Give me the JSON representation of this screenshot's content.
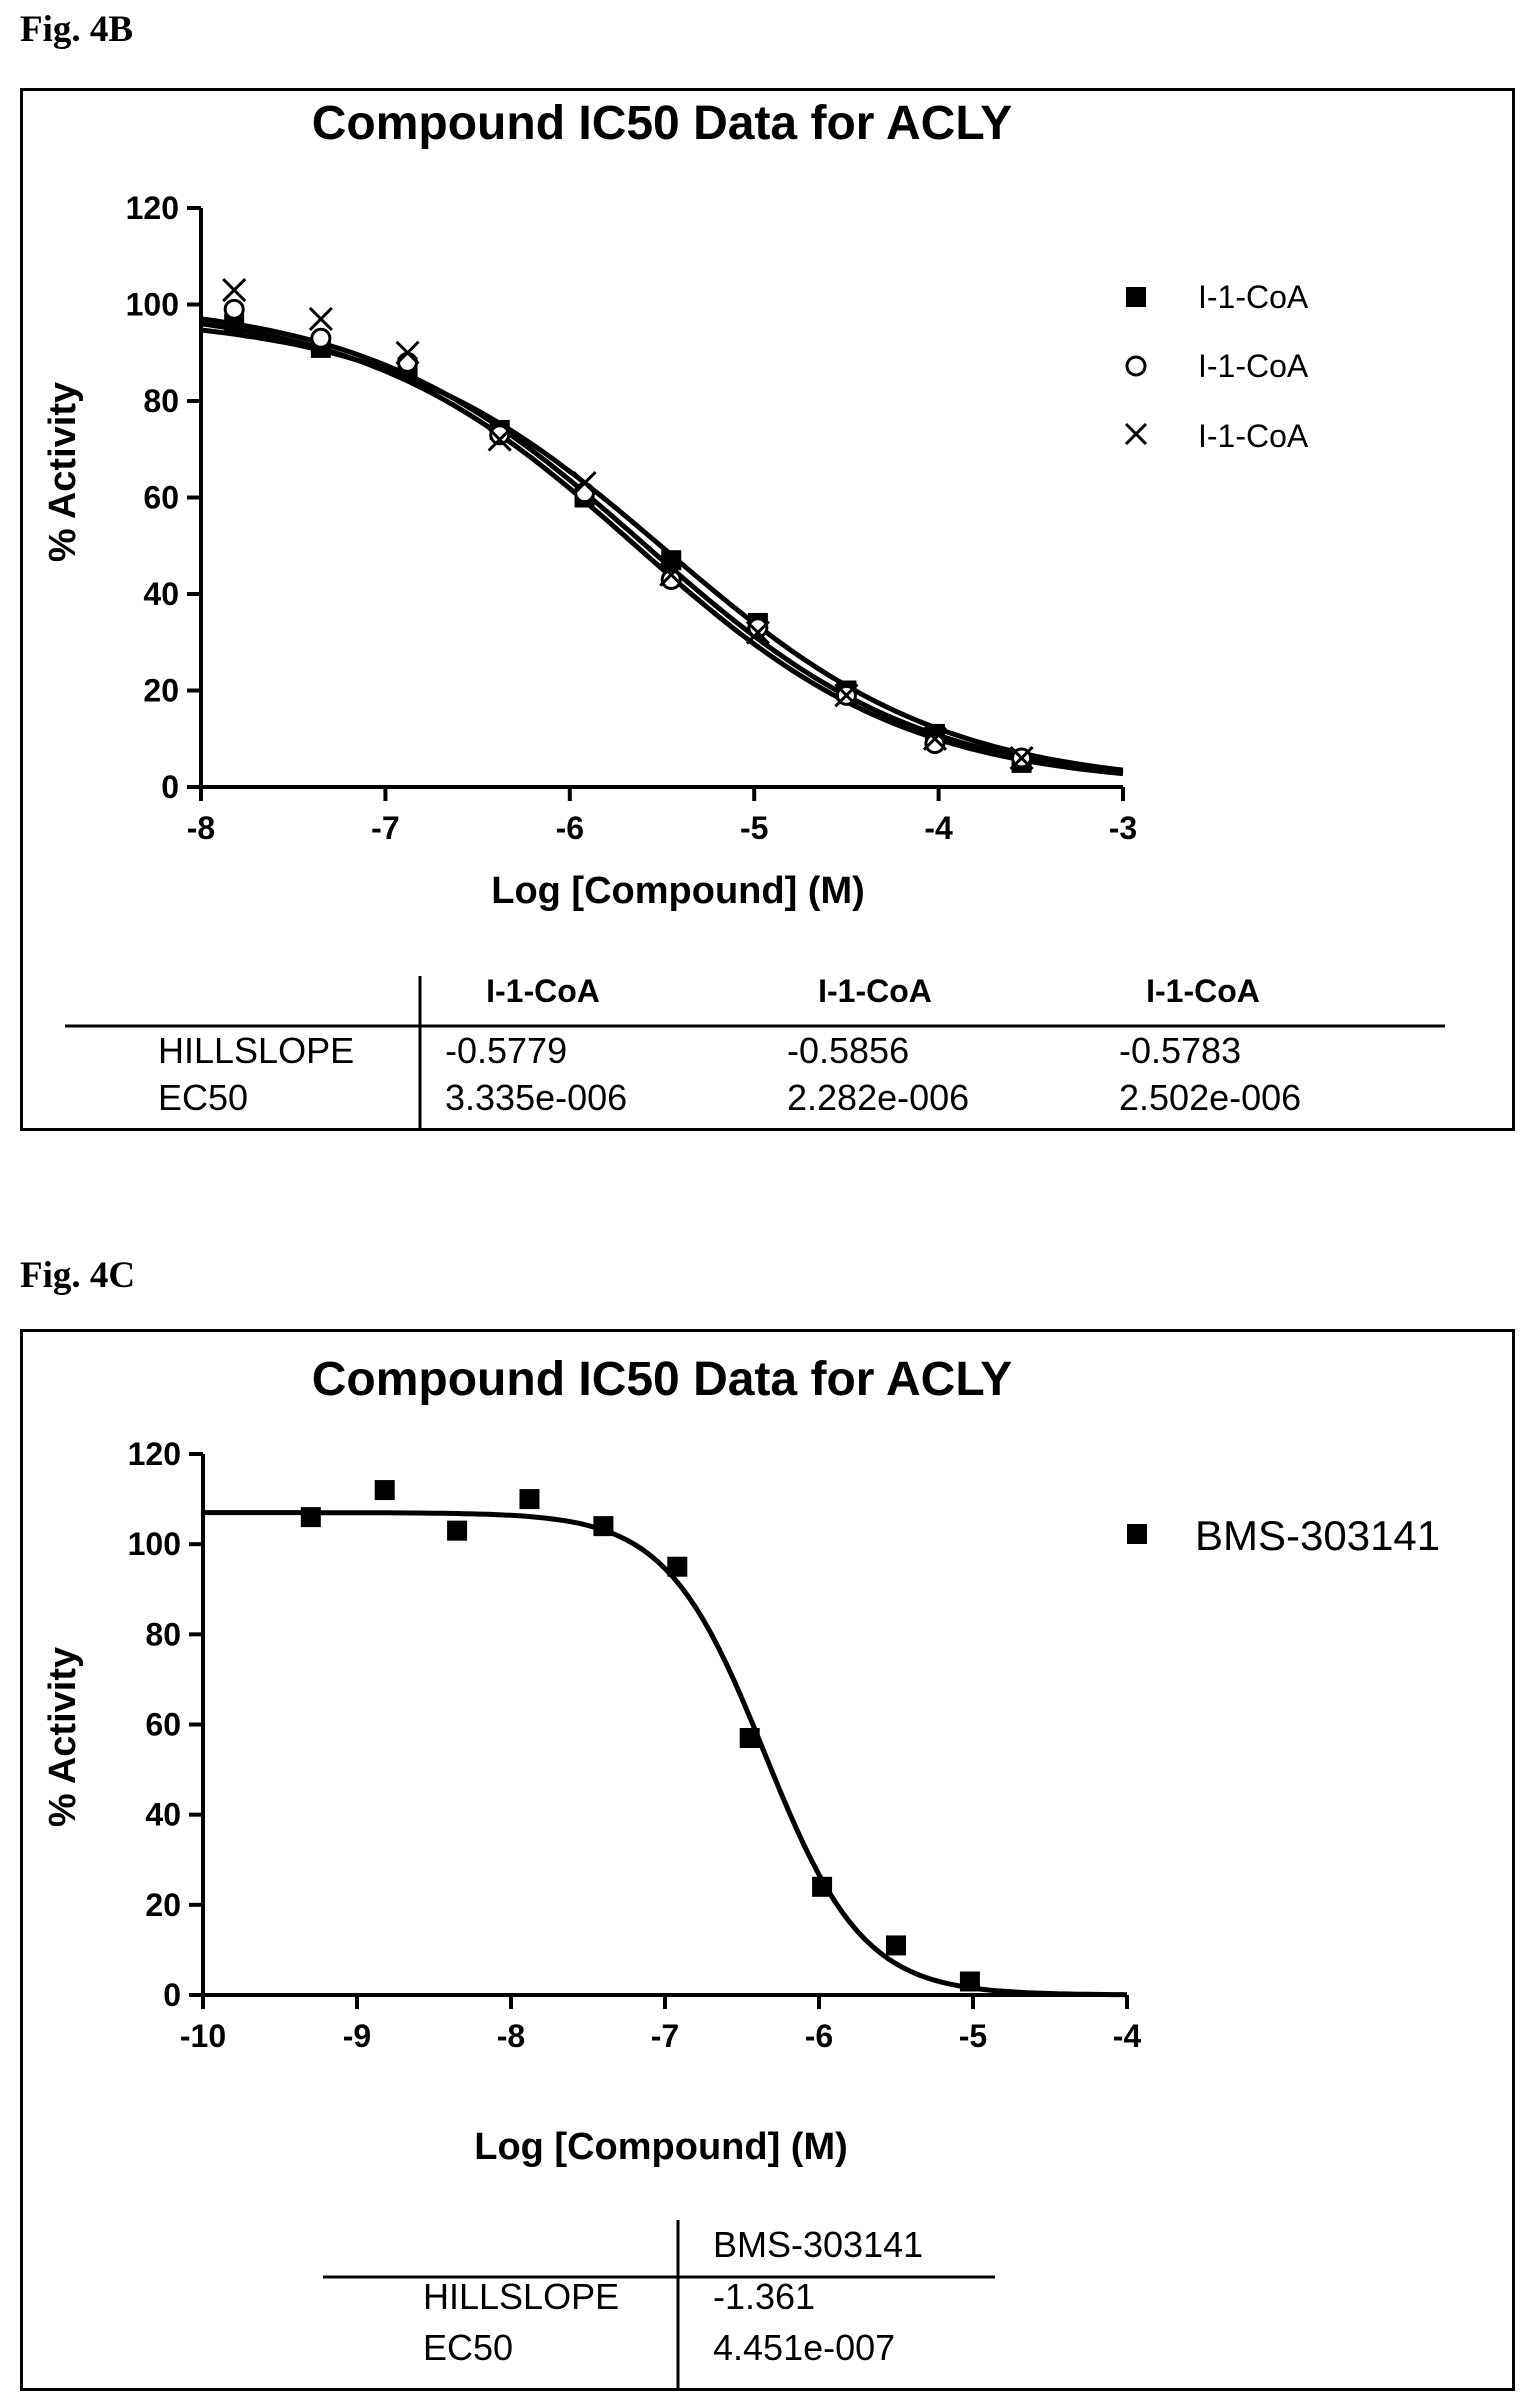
{
  "figures": {
    "b": {
      "label": "Fig. 4B"
    },
    "c": {
      "label": "Fig. 4C"
    }
  },
  "chart_data": [
    {
      "type": "scatter",
      "title": "Compound IC50 Data for ACLY",
      "xlabel": "Log [Compound] (M)",
      "ylabel": "% Activity",
      "xlim": [
        -8,
        -3
      ],
      "ylim": [
        0,
        120
      ],
      "xticks": [
        -8,
        -7,
        -6,
        -5,
        -4,
        -3
      ],
      "yticks": [
        0,
        20,
        40,
        60,
        80,
        100,
        120
      ],
      "legend_position": "top-right",
      "series": [
        {
          "name": "I-1-CoA",
          "marker": "square",
          "x": [
            -7.82,
            -7.35,
            -6.88,
            -6.38,
            -5.92,
            -5.45,
            -4.98,
            -4.5,
            -4.02,
            -3.55
          ],
          "y": [
            96,
            91,
            87,
            74,
            60,
            47,
            34,
            20,
            11,
            5
          ],
          "fit": {
            "top": 98,
            "bottom": 0,
            "hillslope": -0.5779,
            "ec50": 3.335e-06
          }
        },
        {
          "name": "I-1-CoA",
          "marker": "circle",
          "x": [
            -7.82,
            -7.35,
            -6.88,
            -6.38,
            -5.92,
            -5.45,
            -4.98,
            -4.5,
            -4.02,
            -3.55
          ],
          "y": [
            99,
            93,
            88,
            73,
            61,
            43,
            33,
            19,
            9,
            6
          ],
          "fit": {
            "top": 100,
            "bottom": 0,
            "hillslope": -0.5856,
            "ec50": 2.282e-06
          }
        },
        {
          "name": "I-1-CoA",
          "marker": "x",
          "x": [
            -7.82,
            -7.35,
            -6.88,
            -6.38,
            -5.92,
            -5.45,
            -4.98,
            -4.5,
            -4.02,
            -3.55
          ],
          "y": [
            103,
            97,
            90,
            72,
            63,
            44,
            32,
            19,
            10,
            6
          ],
          "fit": {
            "top": 101,
            "bottom": 0,
            "hillslope": -0.5783,
            "ec50": 2.502e-06
          }
        }
      ],
      "table": {
        "columns": [
          "I-1-CoA",
          "I-1-CoA",
          "I-1-CoA"
        ],
        "rows": [
          {
            "label": "HILLSLOPE",
            "values": [
              "-0.5779",
              "-0.5856",
              "-0.5783"
            ]
          },
          {
            "label": "EC50",
            "values": [
              "3.335e-006",
              "2.282e-006",
              "2.502e-006"
            ]
          }
        ]
      }
    },
    {
      "type": "scatter",
      "title": "Compound IC50 Data for ACLY",
      "xlabel": "Log [Compound] (M)",
      "ylabel": "% Activity",
      "xlim": [
        -10,
        -4
      ],
      "ylim": [
        0,
        120
      ],
      "xticks": [
        -10,
        -9,
        -8,
        -7,
        -6,
        -5,
        -4
      ],
      "yticks": [
        0,
        20,
        40,
        60,
        80,
        100,
        120
      ],
      "legend_position": "top-right",
      "series": [
        {
          "name": "BMS-303141",
          "marker": "square",
          "x": [
            -9.3,
            -8.82,
            -8.35,
            -7.88,
            -7.4,
            -6.92,
            -6.45,
            -5.98,
            -5.5,
            -5.02
          ],
          "y": [
            106,
            112,
            103,
            110,
            104,
            95,
            57,
            24,
            11,
            3
          ],
          "fit": {
            "top": 107,
            "bottom": 0,
            "hillslope": -1.361,
            "ec50": 4.451e-07
          }
        }
      ],
      "table": {
        "columns": [
          "BMS-303141"
        ],
        "rows": [
          {
            "label": "HILLSLOPE",
            "values": [
              "-1.361"
            ]
          },
          {
            "label": "EC50",
            "values": [
              "4.451e-007"
            ]
          }
        ]
      }
    }
  ]
}
